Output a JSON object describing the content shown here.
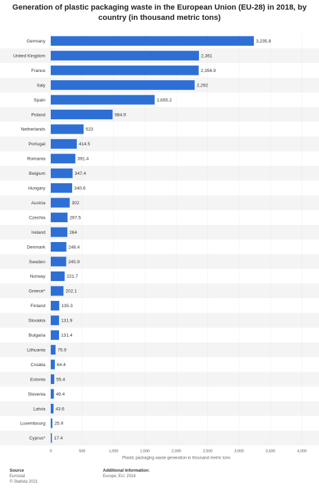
{
  "chart_data": {
    "type": "bar",
    "orientation": "horizontal",
    "title": "Generation of plastic packaging waste in the European Union (EU-28) in 2018, by country (in thousand metric tons)",
    "xlabel": "Plastic packaging waste generation in thousand metric tons",
    "xlim": [
      0,
      4000
    ],
    "xticks": [
      "0",
      "500",
      "1,000",
      "1,500",
      "2,000",
      "2,500",
      "3,000",
      "3,500",
      "4,000"
    ],
    "grid": true,
    "bar_color": "#2e6fd6",
    "categories": [
      "Germany",
      "United Kingdom",
      "France",
      "Italy",
      "Spain",
      "Poland",
      "Netherlands",
      "Portugal",
      "Romania",
      "Belgium",
      "Hungary",
      "Austria",
      "Czechia",
      "Ireland",
      "Denmark",
      "Sweden",
      "Norway",
      "Greece*",
      "Finland",
      "Slovakia",
      "Bulgaria",
      "Lithuania",
      "Croatia",
      "Estonia",
      "Slovenia",
      "Latvia",
      "Luxembourg",
      "Cyprus*"
    ],
    "values": [
      3235.8,
      2361,
      2356.9,
      2292,
      1655.2,
      984.9,
      523,
      414.5,
      391.4,
      347.4,
      340.6,
      302,
      267.5,
      264,
      248.4,
      245.9,
      221.7,
      202.1,
      135.3,
      131.9,
      131.4,
      75.9,
      64.4,
      55.4,
      49.4,
      43.6,
      25.9,
      17.4
    ],
    "value_labels": [
      "3,235.8",
      "2,361",
      "2,356.9",
      "2,292",
      "1,655.2",
      "984.9",
      "523",
      "414.5",
      "391.4",
      "347.4",
      "340.6",
      "302",
      "267.5",
      "264",
      "248.4",
      "245.9",
      "221.7",
      "202.1",
      "135.3",
      "131.9",
      "131.4",
      "75.9",
      "64.4",
      "55.4",
      "49.4",
      "43.6",
      "25.9",
      "17.4"
    ]
  },
  "footer": {
    "source_heading": "Source",
    "source_line1": "Eurostat",
    "source_line2": "© Statista 2021",
    "info_heading": "Additional Information:",
    "info_line1": "Europe; EU; 2018"
  }
}
